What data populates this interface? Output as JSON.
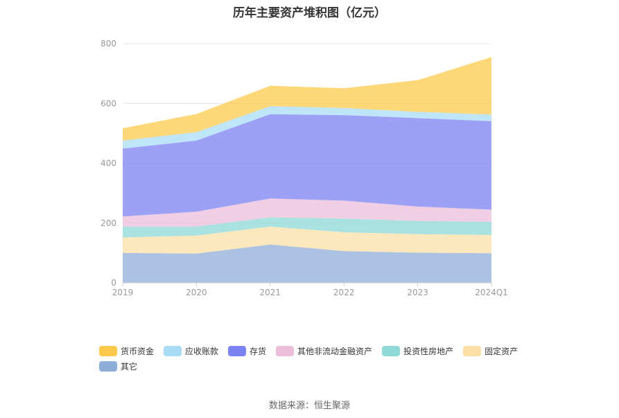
{
  "title": "历年主要资产堆积图（亿元）",
  "source": "数据来源：恒生聚源",
  "chart_data": {
    "type": "area",
    "stacked": true,
    "categories": [
      "2019",
      "2020",
      "2021",
      "2022",
      "2023",
      "2024Q1"
    ],
    "ylim": [
      0,
      800
    ],
    "yticks": [
      0,
      200,
      400,
      600,
      800
    ],
    "grid": true,
    "legend_position": "bottom",
    "series": [
      {
        "name": "其它",
        "color": "#8fadd9",
        "values": [
          100,
          98,
          128,
          106,
          101,
          99
        ]
      },
      {
        "name": "固定资产",
        "color": "#fcdfa6",
        "values": [
          52,
          60,
          60,
          63,
          62,
          61
        ]
      },
      {
        "name": "投资性房地产",
        "color": "#8ed8d8",
        "values": [
          36,
          30,
          31,
          46,
          44,
          44
        ]
      },
      {
        "name": "其他非流动金融资产",
        "color": "#ebbdd9",
        "values": [
          34,
          50,
          63,
          60,
          48,
          41
        ]
      },
      {
        "name": "存货",
        "color": "#7b82f2",
        "values": [
          227,
          238,
          282,
          286,
          296,
          296
        ]
      },
      {
        "name": "应收账款",
        "color": "#a8dcf5",
        "values": [
          27,
          28,
          27,
          24,
          21,
          22
        ]
      },
      {
        "name": "货币资金",
        "color": "#fdc94b",
        "values": [
          41,
          61,
          68,
          66,
          106,
          192
        ]
      }
    ]
  }
}
